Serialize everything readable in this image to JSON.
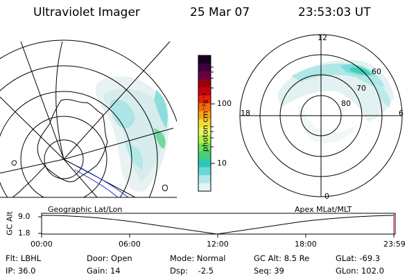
{
  "header": {
    "instrument": "Ultraviolet Imager",
    "date": "25 Mar 07",
    "time": "23:53:03 UT"
  },
  "colorbar": {
    "unit_label": "photon cm⁻²s⁻¹",
    "ticks": [
      "100",
      "10"
    ],
    "colors": [
      "#1a0020",
      "#3a0040",
      "#6a0040",
      "#9a0010",
      "#c80010",
      "#e8200a",
      "#f56a0a",
      "#f7a51a",
      "#f2dc30",
      "#e8f560",
      "#b4f04a",
      "#6ee05a",
      "#46d07a",
      "#2ec8b4",
      "#6ad8d8",
      "#b4e8e8",
      "#e4f4f4"
    ]
  },
  "geo_panel": {
    "label": "Geographic Lat/Lon"
  },
  "apex_panel": {
    "label": "Apex MLat/MLT",
    "lat_labels": [
      "60",
      "70",
      "80"
    ],
    "mlt_labels": {
      "top": "12",
      "left": "18",
      "right": "6",
      "bottom": "0"
    }
  },
  "altitude_plot": {
    "ylabel": "GC Alt",
    "y_ticks": [
      "9.0",
      "1.8"
    ],
    "x_ticks": [
      "00:00",
      "06:00",
      "12:00",
      "18:00",
      "23:59"
    ]
  },
  "status": {
    "flt": "Flt: LBHL",
    "ip": "IP: 36.0",
    "door": "Door: Open",
    "gain": "Gain: 14",
    "mode": "Mode: Normal",
    "dsp": "Dsp:    -2.5",
    "gc_alt": "GC Alt: 8.5 Re",
    "seq": "Seq: 39",
    "glat": "GLat: -69.3",
    "glon": "GLon: 102.0"
  }
}
